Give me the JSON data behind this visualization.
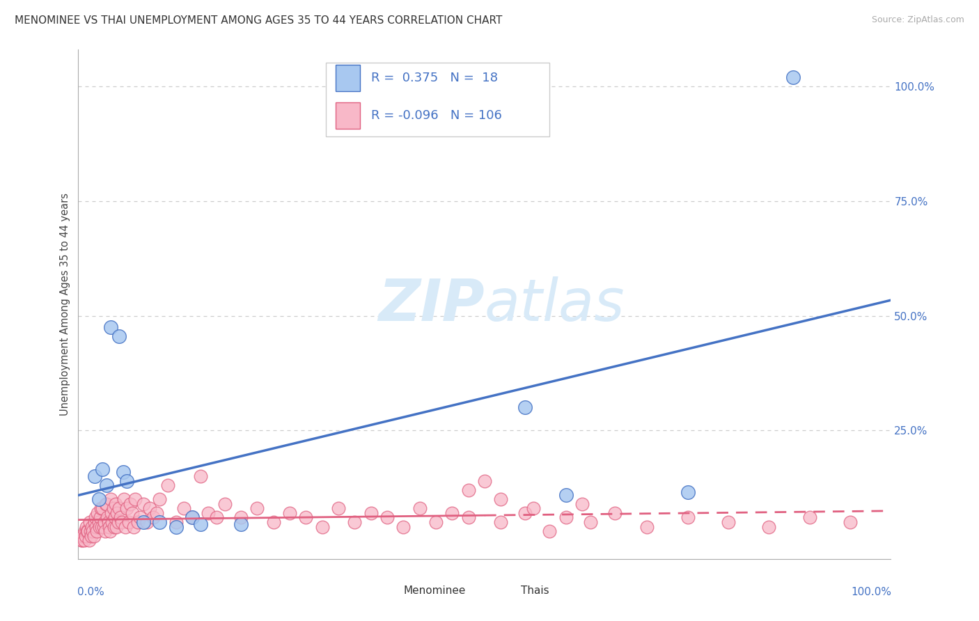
{
  "title": "MENOMINEE VS THAI UNEMPLOYMENT AMONG AGES 35 TO 44 YEARS CORRELATION CHART",
  "source": "Source: ZipAtlas.com",
  "ylabel": "Unemployment Among Ages 35 to 44 years",
  "xlim": [
    0.0,
    1.0
  ],
  "ylim": [
    -0.03,
    1.08
  ],
  "menominee_R": 0.375,
  "menominee_N": 18,
  "thai_R": -0.096,
  "thai_N": 106,
  "menominee_color": "#A8C8F0",
  "thai_color": "#F8B8C8",
  "trend_blue": "#4472C4",
  "trend_pink": "#E06080",
  "watermark_zip": "ZIP",
  "watermark_atlas": "atlas",
  "watermark_color": "#D8EAF8",
  "menominee_x": [
    0.02,
    0.025,
    0.03,
    0.035,
    0.04,
    0.05,
    0.055,
    0.06,
    0.08,
    0.55,
    0.6,
    0.75,
    0.1,
    0.12,
    0.14,
    0.15,
    0.2,
    0.88
  ],
  "menominee_y": [
    0.15,
    0.1,
    0.165,
    0.13,
    0.475,
    0.455,
    0.16,
    0.14,
    0.05,
    0.3,
    0.11,
    0.115,
    0.05,
    0.04,
    0.06,
    0.045,
    0.045,
    1.02
  ],
  "thai_x": [
    0.003,
    0.004,
    0.005,
    0.006,
    0.007,
    0.008,
    0.009,
    0.01,
    0.011,
    0.012,
    0.013,
    0.014,
    0.015,
    0.016,
    0.017,
    0.018,
    0.019,
    0.02,
    0.021,
    0.022,
    0.023,
    0.024,
    0.025,
    0.026,
    0.027,
    0.028,
    0.029,
    0.03,
    0.031,
    0.032,
    0.033,
    0.034,
    0.035,
    0.036,
    0.037,
    0.038,
    0.039,
    0.04,
    0.041,
    0.042,
    0.043,
    0.044,
    0.045,
    0.046,
    0.047,
    0.048,
    0.049,
    0.05,
    0.052,
    0.054,
    0.056,
    0.058,
    0.06,
    0.062,
    0.064,
    0.066,
    0.068,
    0.07,
    0.073,
    0.076,
    0.08,
    0.084,
    0.088,
    0.092,
    0.096,
    0.1,
    0.11,
    0.12,
    0.13,
    0.14,
    0.15,
    0.16,
    0.17,
    0.18,
    0.2,
    0.22,
    0.24,
    0.26,
    0.28,
    0.3,
    0.32,
    0.34,
    0.36,
    0.38,
    0.4,
    0.42,
    0.44,
    0.46,
    0.48,
    0.5,
    0.52,
    0.55,
    0.58,
    0.6,
    0.63,
    0.66,
    0.7,
    0.75,
    0.8,
    0.85,
    0.9,
    0.95,
    0.48,
    0.52,
    0.56,
    0.62
  ],
  "thai_y": [
    0.02,
    0.01,
    0.01,
    0.02,
    0.01,
    0.03,
    0.02,
    0.04,
    0.03,
    0.03,
    0.01,
    0.05,
    0.03,
    0.02,
    0.04,
    0.03,
    0.02,
    0.05,
    0.06,
    0.04,
    0.03,
    0.07,
    0.05,
    0.04,
    0.06,
    0.08,
    0.04,
    0.08,
    0.04,
    0.05,
    0.03,
    0.09,
    0.09,
    0.06,
    0.05,
    0.04,
    0.03,
    0.1,
    0.07,
    0.05,
    0.08,
    0.04,
    0.06,
    0.09,
    0.04,
    0.07,
    0.05,
    0.08,
    0.06,
    0.05,
    0.1,
    0.04,
    0.08,
    0.05,
    0.09,
    0.07,
    0.04,
    0.1,
    0.05,
    0.06,
    0.09,
    0.05,
    0.08,
    0.06,
    0.07,
    0.1,
    0.13,
    0.05,
    0.08,
    0.06,
    0.15,
    0.07,
    0.06,
    0.09,
    0.06,
    0.08,
    0.05,
    0.07,
    0.06,
    0.04,
    0.08,
    0.05,
    0.07,
    0.06,
    0.04,
    0.08,
    0.05,
    0.07,
    0.06,
    0.14,
    0.05,
    0.07,
    0.03,
    0.06,
    0.05,
    0.07,
    0.04,
    0.06,
    0.05,
    0.04,
    0.06,
    0.05,
    0.12,
    0.1,
    0.08,
    0.09
  ]
}
